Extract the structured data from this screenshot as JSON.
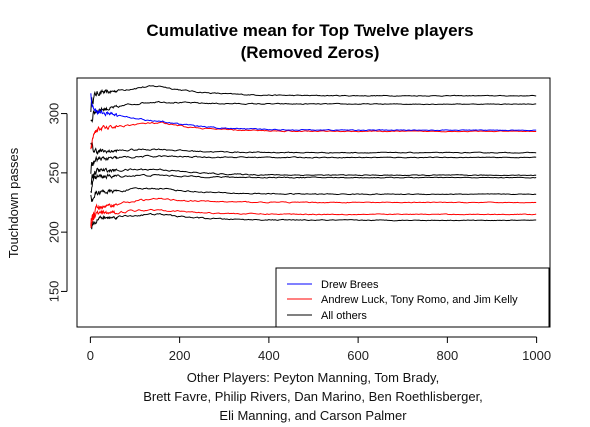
{
  "chart_data": {
    "type": "line",
    "title": "Cumulative mean for Top Twelve players",
    "subtitle": "(Removed Zeros)",
    "ylabel": "Touchdown passes",
    "xlabel_lines": [
      "Other Players: Peyton Manning, Tom Brady,",
      "Brett Favre, Philip Rivers, Dan Marino, Ben Roethlisberger,",
      "Eli Manning, and Carson Palmer"
    ],
    "xlim": [
      -30,
      1030
    ],
    "ylim": [
      120,
      330
    ],
    "xticks": [
      0,
      200,
      400,
      600,
      800,
      1000
    ],
    "yticks": [
      150,
      200,
      250,
      300
    ],
    "grid": false,
    "legend_position": "bottom-right",
    "legend": [
      {
        "label": "Drew Brees",
        "color": "#0000ff"
      },
      {
        "label": "Andrew Luck, Tony Romo, and Jim Kelly",
        "color": "#ff0000"
      },
      {
        "label": "All others",
        "color": "#000000"
      }
    ],
    "series": [
      {
        "group": "Drew Brees",
        "color": "#0000ff",
        "start": 325,
        "early": 300,
        "peak": 294,
        "final": 286
      },
      {
        "group": "Andrew Luck, Tony Romo, and Jim Kelly",
        "color": "#ff0000",
        "start": 270,
        "early": 288,
        "peak": 292,
        "final": 285
      },
      {
        "group": "Andrew Luck, Tony Romo, and Jim Kelly",
        "color": "#ff0000",
        "start": 197,
        "early": 222,
        "peak": 228,
        "final": 225
      },
      {
        "group": "Andrew Luck, Tony Romo, and Jim Kelly",
        "color": "#ff0000",
        "start": 205,
        "early": 216,
        "peak": 219,
        "final": 215
      },
      {
        "group": "All others",
        "color": "#000000",
        "start": 305,
        "early": 318,
        "peak": 323,
        "final": 315
      },
      {
        "group": "All others",
        "color": "#000000",
        "start": 290,
        "early": 304,
        "peak": 310,
        "final": 308
      },
      {
        "group": "All others",
        "color": "#000000",
        "start": 272,
        "early": 268,
        "peak": 270,
        "final": 267
      },
      {
        "group": "All others",
        "color": "#000000",
        "start": 250,
        "early": 262,
        "peak": 264,
        "final": 263
      },
      {
        "group": "All others",
        "color": "#000000",
        "start": 245,
        "early": 252,
        "peak": 253,
        "final": 248
      },
      {
        "group": "All others",
        "color": "#000000",
        "start": 240,
        "early": 247,
        "peak": 248,
        "final": 246
      },
      {
        "group": "All others",
        "color": "#000000",
        "start": 225,
        "early": 234,
        "peak": 237,
        "final": 232
      },
      {
        "group": "All others",
        "color": "#000000",
        "start": 200,
        "early": 212,
        "peak": 215,
        "final": 210
      }
    ]
  }
}
